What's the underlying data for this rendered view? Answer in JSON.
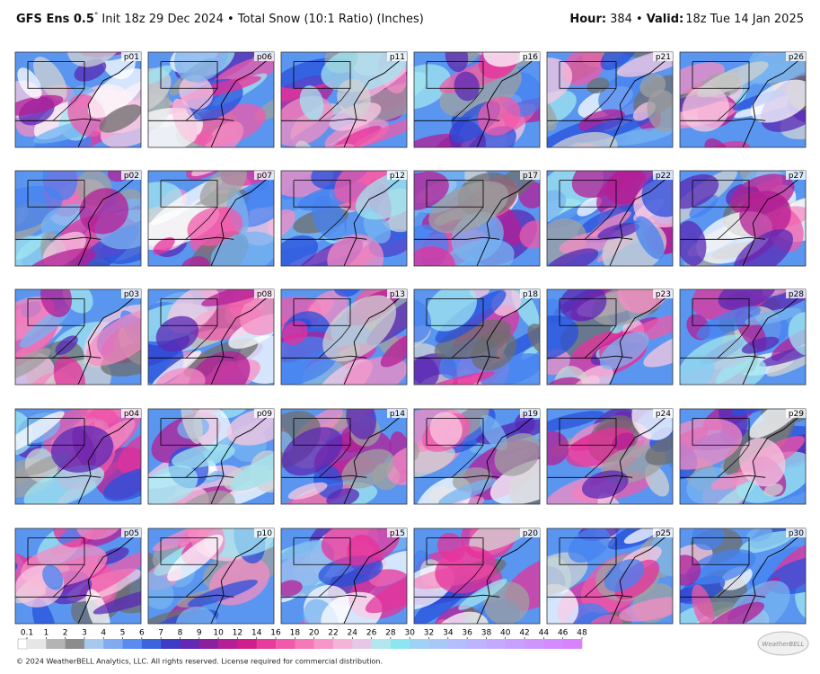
{
  "header": {
    "model": "GFS Ens 0.5",
    "degree": "°",
    "description": "Init 18z 29 Dec 2024 • Total Snow (10:1 Ratio) (Inches)",
    "hour_label": "Hour:",
    "hour_value": "384 •",
    "valid_label": "Valid:",
    "valid_value": "18z Tue 14 Jan 2025"
  },
  "panels": [
    "p01",
    "p02",
    "p03",
    "p04",
    "p05",
    "p06",
    "p07",
    "p08",
    "p09",
    "p10",
    "p11",
    "p12",
    "p13",
    "p14",
    "p15",
    "p16",
    "p17",
    "p18",
    "p19",
    "p20",
    "p21",
    "p22",
    "p23",
    "p24",
    "p25",
    "p26",
    "p27",
    "p28",
    "p29",
    "p30"
  ],
  "colorbar": {
    "ticks": [
      0.1,
      1,
      2,
      3,
      4,
      5,
      6,
      7,
      8,
      9,
      10,
      12,
      14,
      16,
      18,
      20,
      22,
      24,
      26,
      28,
      30,
      32,
      34,
      36,
      38,
      40,
      42,
      44,
      46,
      48
    ],
    "colors": [
      "#e6e6e6",
      "#b4b4b4",
      "#8c8c8c",
      "#a8c8f0",
      "#82aaf0",
      "#5a8cf0",
      "#3c64dc",
      "#3c3cc8",
      "#6428b4",
      "#8c1ea0",
      "#b41e96",
      "#d21e8c",
      "#e63c9b",
      "#f05aaa",
      "#f578b9",
      "#f796c8",
      "#f5b4d7",
      "#e6c8e6",
      "#b4e6f0",
      "#8ce6f0",
      "#a0d2f5",
      "#aac8f5",
      "#b4beff",
      "#bcb4ff",
      "#c3aaff",
      "#c8a0ff",
      "#cd96ff",
      "#d28cff",
      "#d782ff"
    ]
  },
  "footer": {
    "copyright": "© 2024 WeatherBELL Analytics, LLC. All rights reserved. License required for commercial distribution.",
    "logo": "WeatherBELL"
  }
}
